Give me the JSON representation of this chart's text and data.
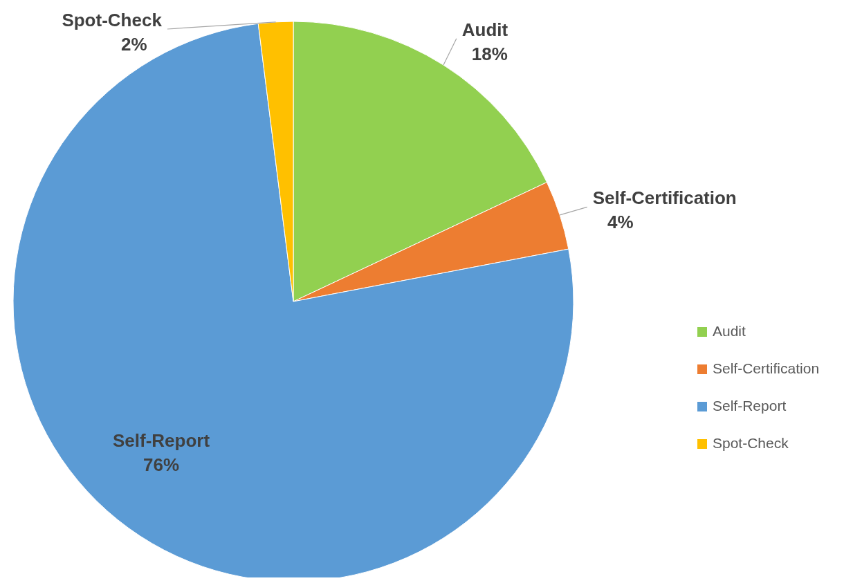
{
  "chart_data": {
    "type": "pie",
    "categories": [
      "Audit",
      "Self-Certification",
      "Self-Report",
      "Spot-Check"
    ],
    "values": [
      18,
      4,
      76,
      2
    ],
    "colors": [
      "#92d050",
      "#ed7d31",
      "#5b9bd5",
      "#ffc000"
    ],
    "value_labels": [
      "18%",
      "4%",
      "76%",
      "2%"
    ],
    "legend": "right"
  }
}
